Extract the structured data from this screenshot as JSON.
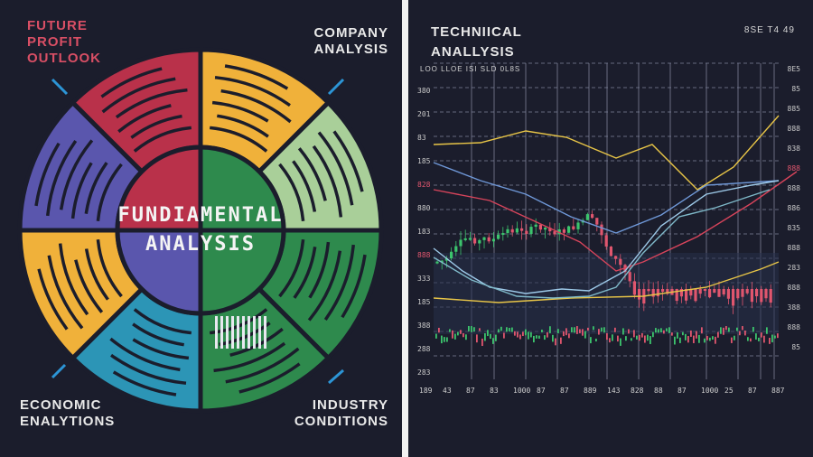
{
  "left_panel": {
    "center_title": [
      "FUNDIAMENTAL",
      "ANALYSIS"
    ],
    "future_profit": [
      "FUTURE",
      "PROFIT",
      "OUTLOOK"
    ],
    "company_analysis": [
      "COMPANY",
      "ANALYSIS"
    ],
    "economic": [
      "ECONOMIC",
      "ENALYTIONS"
    ],
    "industry": [
      "INDUSTRY",
      "CONDITIONS"
    ],
    "colors": {
      "red": "#b9314a",
      "yellow": "#f0b13a",
      "green_light": "#a9cf99",
      "green": "#2e8a4d",
      "teal": "#2c95b6",
      "blue": "#5a56ad",
      "purple": "#5b56a8"
    }
  },
  "right_panel": {
    "title": [
      "TECHNIICAL",
      "ANALLYSIS"
    ],
    "ticker": "8SE  T4  49",
    "subtitle": "LOO  LLOE  ISI  SLD  0L8S",
    "y_labels_left": [
      "380",
      "201",
      "83",
      "185",
      "828",
      "880",
      "183",
      "888",
      "333",
      "185",
      "388",
      "288",
      "283"
    ],
    "y_labels_right": [
      "8E5",
      "85",
      "885",
      "888",
      "838",
      "888",
      "888",
      "886",
      "835",
      "888",
      "283",
      "888",
      "388",
      "888",
      "85"
    ],
    "x_labels": [
      "189",
      "43",
      "87",
      "83",
      "1000",
      "87",
      "87",
      "889",
      "143",
      "828",
      "88",
      "87",
      "1000",
      "25",
      "87",
      "887"
    ],
    "colors": {
      "bull": "#3cc46d",
      "bear": "#e0566e",
      "yellow": "#e8c547",
      "blue": "#6f98d8",
      "red": "#d7445b"
    }
  }
}
